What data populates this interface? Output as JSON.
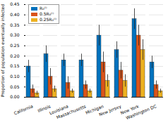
{
  "chart_data": {
    "type": "bar",
    "y_label": "Proportion of population eventually infected",
    "categories": [
      "California",
      "Illinois",
      "Louisiana",
      "Massachusetts",
      "Michigan",
      "New Jersey",
      "New York",
      "Washington DC"
    ],
    "series": [
      {
        "name": "R₀⁽ⁱ⁾",
        "color": "#0072bd",
        "values": [
          0.15,
          0.21,
          0.18,
          0.18,
          0.3,
          0.23,
          0.38,
          0.17
        ],
        "errors": [
          0.03,
          0.04,
          0.03,
          0.03,
          0.05,
          0.04,
          0.05,
          0.03
        ]
      },
      {
        "name": "0.5R₀⁽ⁱ⁾",
        "color": "#d95319",
        "values": [
          0.04,
          0.1,
          0.07,
          0.06,
          0.17,
          0.13,
          0.3,
          0.06
        ],
        "errors": [
          0.02,
          0.04,
          0.03,
          0.02,
          0.05,
          0.04,
          0.05,
          0.02
        ]
      },
      {
        "name": "0.25R₀⁽ⁱ⁾",
        "color": "#edb120",
        "values": [
          0.02,
          0.04,
          0.03,
          0.03,
          0.08,
          0.08,
          0.23,
          0.03
        ],
        "errors": [
          0.01,
          0.015,
          0.01,
          0.01,
          0.03,
          0.03,
          0.05,
          0.01
        ]
      }
    ],
    "ylim": [
      0,
      0.45
    ],
    "yticks": [
      0,
      0.05,
      0.1,
      0.15,
      0.2,
      0.25,
      0.3,
      0.35,
      0.4,
      0.45
    ],
    "grid": true,
    "legend": "top-left"
  }
}
